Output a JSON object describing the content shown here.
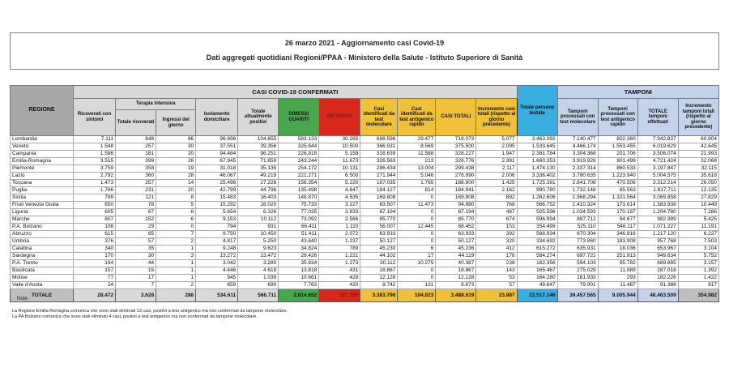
{
  "header": {
    "title": "26 marzo 2021 - Aggiornamento casi Covid-19",
    "subtitle": "Dati aggregati quotidiani Regioni/PPAA - Ministero della Salute - Istituto Superiore di Sanità"
  },
  "table": {
    "region_header": "REGIONE",
    "confirmed_group": "CASI COVID-19 CONFERMATI",
    "tamponi_group": "TAMPONI",
    "terapia_group": "Terapia intensiva",
    "col_ricoverati": "Ricoverati con sintomi",
    "col_terapia_totale": "Totale ricoverati",
    "col_terapia_ingressi": "Ingressi del giorno",
    "col_isolamento": "Isolamento domiciliare",
    "col_attualmente_positivi": "Totale attualmente positivi",
    "col_dimessi": "DIMESSI GUARITI",
    "col_deceduti": "DECEDUTI",
    "col_casi_molecolare": "Casi identificati da test molecolare",
    "col_casi_antigenico": "Casi identificati da test antigenico rapido",
    "col_casi_totali": "CASI TOTALI",
    "col_incremento_casi": "Incremento casi totali (rispetto al giorno precedente)",
    "col_persone_testate": "Totale persone testate",
    "col_tamponi_molecolare": "Tamponi processati con test molecolare",
    "col_tamponi_antigenico": "Tamponi processati con test antigenico rapido",
    "col_tamponi_totale": "TOTALE tamponi effettuati",
    "col_incremento_tamponi": "Incremento tamponi totali (rispetto al giorno precedente)",
    "rows": [
      [
        "Lombardia",
        "7.111",
        "848",
        "86",
        "96.696",
        "104.655",
        "583.133",
        "30.285",
        "688.596",
        "29.477",
        "718.073",
        "5.077",
        "3.463.092",
        "7.140.477",
        "802.360",
        "7.942.837",
        "60.804"
      ],
      [
        "Veneto",
        "1.548",
        "257",
        "30",
        "37.551",
        "39.356",
        "325.644",
        "10.500",
        "366.931",
        "8.569",
        "375.500",
        "2.095",
        "1.533.645",
        "4.466.174",
        "1.553.455",
        "6.019.629",
        "42.645"
      ],
      [
        "Campania",
        "1.586",
        "181",
        "20",
        "94.484",
        "96.251",
        "226.818",
        "5.158",
        "316.639",
        "11.588",
        "328.227",
        "1.947",
        "2.381.784",
        "3.304.368",
        "201.706",
        "3.506.074",
        "21.993"
      ],
      [
        "Emilia-Romagna",
        "3.515",
        "399",
        "26",
        "67.945",
        "71.859",
        "243.244",
        "11.673",
        "326.563",
        "213",
        "326.776",
        "2.391",
        "1.660.353",
        "3.919.926",
        "801.498",
        "4.721.424",
        "32.068"
      ],
      [
        "Piemonte",
        "3.759",
        "358",
        "19",
        "31.018",
        "35.135",
        "254.172",
        "10.131",
        "286.434",
        "13.004",
        "299.438",
        "2.117",
        "1.474.130",
        "2.337.314",
        "860.533",
        "3.197.847",
        "32.115"
      ],
      [
        "Lazio",
        "2.792",
        "360",
        "28",
        "46.067",
        "49.219",
        "221.271",
        "6.500",
        "271.944",
        "5.046",
        "276.990",
        "2.006",
        "3.336.402",
        "3.780.635",
        "1.223.940",
        "5.004.575",
        "35.618"
      ],
      [
        "Toscana",
        "1.473",
        "257",
        "14",
        "25.496",
        "27.226",
        "156.354",
        "5.220",
        "187.035",
        "1.765",
        "188.800",
        "1.425",
        "1.725.391",
        "2.841.708",
        "470.506",
        "3.312.214",
        "26.050"
      ],
      [
        "Puglia",
        "1.766",
        "231",
        "20",
        "42.799",
        "44.796",
        "135.498",
        "4.647",
        "184.127",
        "814",
        "184.941",
        "2.162",
        "990.780",
        "1.732.148",
        "85.563",
        "1.817.711",
        "12.135"
      ],
      [
        "Sicilia",
        "799",
        "121",
        "8",
        "15.483",
        "16.403",
        "148.870",
        "4.535",
        "169.808",
        "0",
        "169.808",
        "892",
        "1.262.606",
        "1.968.294",
        "1.101.564",
        "3.069.858",
        "27.829"
      ],
      [
        "Friuli Venezia Giulia",
        "650",
        "78",
        "5",
        "15.292",
        "16.020",
        "75.733",
        "3.227",
        "83.507",
        "11.473",
        "94.980",
        "768",
        "566.752",
        "1.410.324",
        "173.614",
        "1.583.938",
        "10.449"
      ],
      [
        "Liguria",
        "605",
        "67",
        "8",
        "5.654",
        "6.326",
        "77.035",
        "3.833",
        "87.194",
        "0",
        "87.194",
        "487",
        "505.596",
        "1.034.593",
        "170.187",
        "1.204.780",
        "7.286"
      ],
      [
        "Marche",
        "807",
        "152",
        "6",
        "9.153",
        "10.112",
        "73.092",
        "2.566",
        "85.770",
        "0",
        "85.770",
        "674",
        "596.994",
        "887.712",
        "94.677",
        "982.389",
        "5.425"
      ],
      [
        "P.A. Bolzano",
        "108",
        "29",
        "0",
        "794",
        "931",
        "66.411",
        "1.110",
        "56.007",
        "12.445",
        "68.452",
        "153",
        "354.499",
        "525.110",
        "546.117",
        "1.071.227",
        "11.191"
      ],
      [
        "Abruzzo",
        "615",
        "85",
        "7",
        "9.750",
        "10.450",
        "51.411",
        "2.072",
        "63.933",
        "0",
        "63.933",
        "392",
        "568.934",
        "870.304",
        "346.816",
        "1.217.120",
        "6.227"
      ],
      [
        "Umbria",
        "376",
        "57",
        "2",
        "4.817",
        "5.250",
        "43.640",
        "1.237",
        "50.127",
        "0",
        "50.127",
        "320",
        "334.692",
        "773.860",
        "183.908",
        "957.768",
        "7.503"
      ],
      [
        "Calabria",
        "340",
        "35",
        "1",
        "9.248",
        "9.623",
        "34.824",
        "789",
        "45.230",
        "6",
        "45.236",
        "412",
        "615.272",
        "635.931",
        "18.036",
        "653.967",
        "3.104"
      ],
      [
        "Sardegna",
        "170",
        "30",
        "3",
        "13.272",
        "13.472",
        "29.426",
        "1.221",
        "44.102",
        "17",
        "44.119",
        "178",
        "584.274",
        "697.721",
        "251.913",
        "949.634",
        "5.752"
      ],
      [
        "P.A. Trento",
        "194",
        "44",
        "1",
        "3.042",
        "3.280",
        "35.834",
        "1.273",
        "30.112",
        "10.275",
        "40.387",
        "238",
        "182.356",
        "594.103",
        "95.782",
        "689.885",
        "3.157"
      ],
      [
        "Basilicata",
        "157",
        "15",
        "1",
        "4.446",
        "4.618",
        "13.818",
        "431",
        "18.867",
        "0",
        "18.867",
        "143",
        "165.467",
        "275.029",
        "11.989",
        "287.018",
        "1.392"
      ],
      [
        "Molise",
        "77",
        "17",
        "1",
        "945",
        "1.039",
        "10.661",
        "428",
        "12.128",
        "0",
        "12.128",
        "53",
        "164.280",
        "181.933",
        "293",
        "182.226",
        "1.422"
      ],
      [
        "Valle d'Aosta",
        "24",
        "7",
        "2",
        "659",
        "690",
        "7.763",
        "420",
        "8.742",
        "131",
        "8.873",
        "57",
        "49.847",
        "79.901",
        "11.487",
        "91.388",
        "817"
      ]
    ],
    "total_row": [
      "TOTALE",
      "28.472",
      "3.628",
      "288",
      "534.611",
      "566.711",
      "2.814.652",
      "107.256",
      "3.383.796",
      "104.823",
      "3.488.619",
      "23.987",
      "22.517.146",
      "39.457.565",
      "9.005.944",
      "48.463.509",
      "354.982"
    ]
  },
  "notes": {
    "title": "Note:",
    "line1": "La Regione Emilia Romagna comunica che sono stati eliminati 13 casi, positivi a test antigenico ma non confermati da tampone molecolare.",
    "line2": "La PA Bolzano comunica che sono stati eliminati 4 casi, positivi a test antigenico ma non confermati da tampone molecolare."
  },
  "colors": {
    "header_gray": "#d9d9d9",
    "region_header_gray": "#a8a8a8",
    "green": "#4aa64d",
    "red": "#d8271b",
    "yellow": "#eec139",
    "cyan": "#38ade0",
    "light_blue": "#c4d3ea",
    "total_label_gray": "#bfbfbf",
    "total_value_gray": "#d9d9d9",
    "deceduti_text": "#7e1c12"
  }
}
